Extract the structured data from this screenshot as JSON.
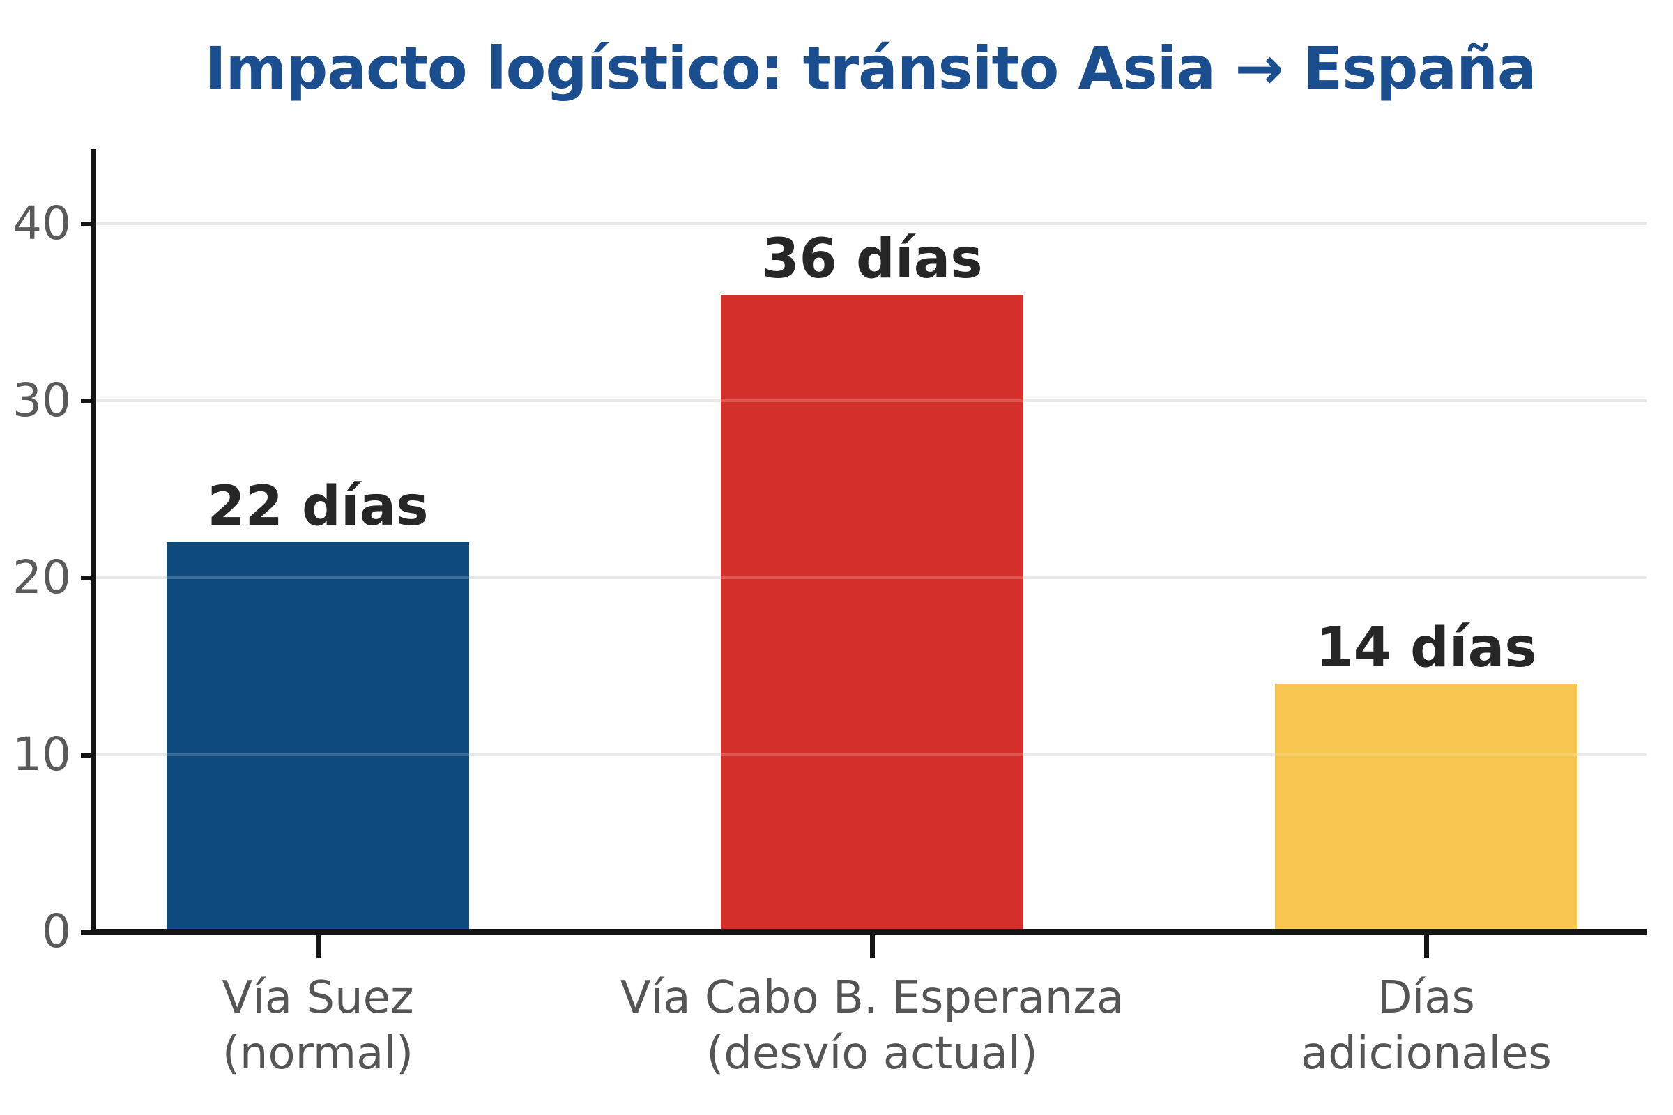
{
  "page": {
    "background": "#ffffff"
  },
  "chart_data": {
    "type": "bar",
    "title": "Impacto logístico: tránsito Asia → España",
    "categories": [
      [
        "Vía Suez",
        "(normal)"
      ],
      [
        "Vía Cabo B. Esperanza",
        "(desvío actual)"
      ],
      [
        "Días",
        "adicionales"
      ]
    ],
    "values": [
      22,
      36,
      14
    ],
    "bar_labels": [
      "22 días",
      "36 días",
      "14 días"
    ],
    "bar_colors": [
      "#0f4a7f",
      "#d4302b",
      "#f6c64e"
    ],
    "yticks": [
      0,
      10,
      20,
      30,
      40
    ],
    "ylim": [
      0,
      44.2
    ],
    "xlabel": "",
    "ylabel": "",
    "grid": true,
    "legend_position": "none",
    "colors": {
      "title": "#1b4e8f",
      "value_label": "#262626",
      "tick_label": "#5a5a5a",
      "category_label": "#555555",
      "axis": "#151515",
      "gridline": "#e9e9e9"
    }
  }
}
